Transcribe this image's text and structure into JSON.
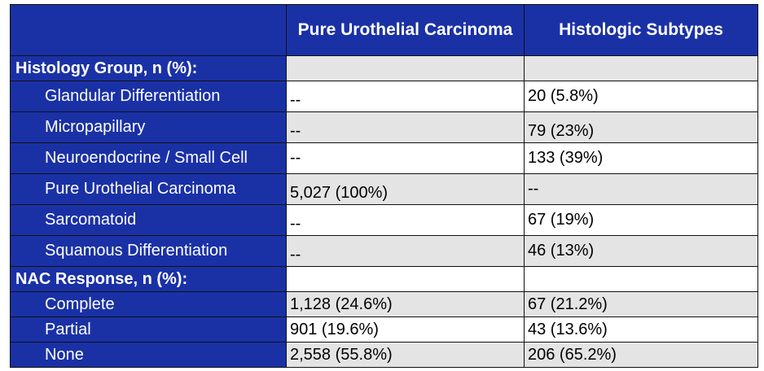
{
  "header": {
    "col1": "",
    "col2": "Pure Urothelial Carcinoma",
    "col3": "Histologic Subtypes"
  },
  "histology_group": {
    "title": "Histology Group, n (%):",
    "rows": [
      {
        "label": "Glandular Differentiation",
        "pure": "--",
        "subtypes": "20 (5.8%)"
      },
      {
        "label": "Micropapillary",
        "pure": "--",
        "subtypes": "79 (23%)"
      },
      {
        "label": "Neuroendocrine / Small Cell",
        "pure": "--",
        "subtypes": "133 (39%)"
      },
      {
        "label": "Pure Urothelial Carcinoma",
        "pure": "5,027 (100%)",
        "subtypes": "--"
      },
      {
        "label": "Sarcomatoid",
        "pure": "--",
        "subtypes": "67 (19%)"
      },
      {
        "label": "Squamous Differentiation",
        "pure": "--",
        "subtypes": "46 (13%)"
      }
    ]
  },
  "nac_response": {
    "title": "NAC Response, n (%):",
    "rows": [
      {
        "label": "Complete",
        "pure": "1,128 (24.6%)",
        "subtypes": "67 (21.2%)"
      },
      {
        "label": "Partial",
        "pure": "901 (19.6%)",
        "subtypes": "43 (13.6%)"
      },
      {
        "label": "None",
        "pure": "2,558 (55.8%)",
        "subtypes": "206 (65.2%)"
      }
    ]
  }
}
